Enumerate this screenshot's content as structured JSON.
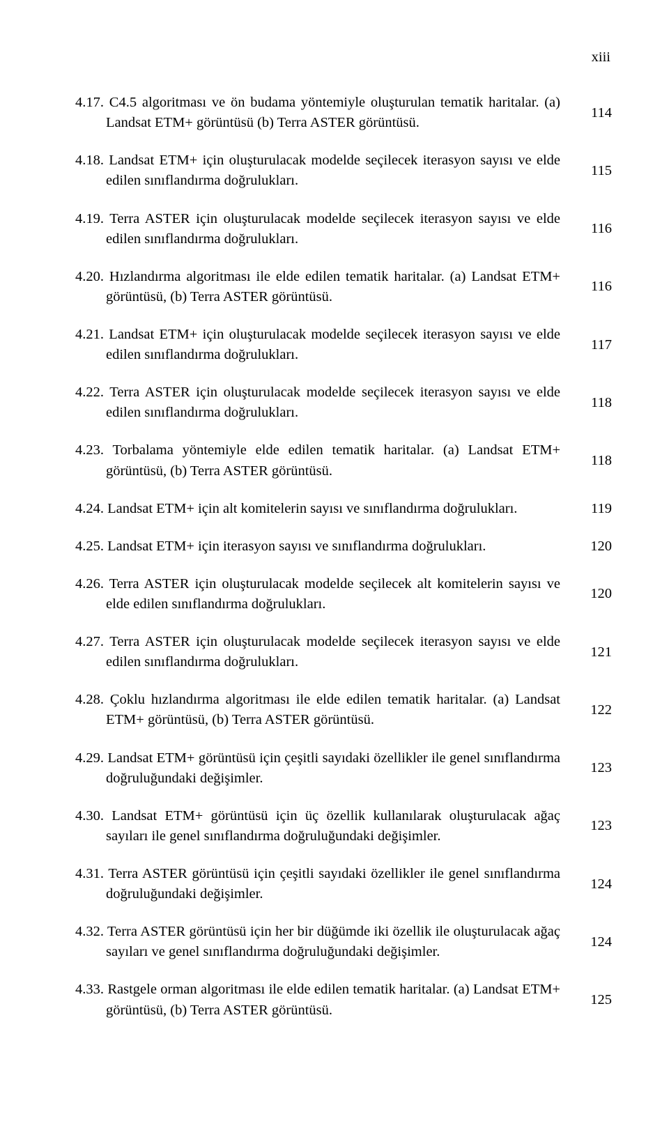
{
  "page_label": "xiii",
  "entries": [
    {
      "text": "4.17. C4.5 algoritması ve ön budama yöntemiyle oluşturulan tematik haritalar. (a) Landsat ETM+ görüntüsü (b) Terra ASTER görüntüsü.",
      "page": "114"
    },
    {
      "text": "4.18. Landsat ETM+ için oluşturulacak modelde seçilecek iterasyon sayısı ve elde edilen sınıflandırma doğrulukları.",
      "page": "115"
    },
    {
      "text": "4.19. Terra ASTER için oluşturulacak modelde seçilecek iterasyon sayısı ve elde edilen sınıflandırma doğrulukları.",
      "page": "116"
    },
    {
      "text": "4.20. Hızlandırma algoritması ile elde edilen tematik haritalar. (a) Landsat ETM+ görüntüsü, (b) Terra ASTER görüntüsü.",
      "page": "116"
    },
    {
      "text": "4.21. Landsat ETM+ için oluşturulacak modelde seçilecek iterasyon sayısı ve elde edilen sınıflandırma doğrulukları.",
      "page": "117"
    },
    {
      "text": "4.22. Terra ASTER için oluşturulacak modelde seçilecek iterasyon sayısı ve elde edilen sınıflandırma doğrulukları.",
      "page": "118"
    },
    {
      "text": "4.23. Torbalama yöntemiyle elde edilen tematik haritalar. (a) Landsat ETM+ görüntüsü, (b) Terra ASTER görüntüsü.",
      "page": "118"
    },
    {
      "text": "4.24. Landsat ETM+ için alt komitelerin sayısı ve sınıflandırma doğrulukları.",
      "page": "119"
    },
    {
      "text": "4.25. Landsat ETM+ için iterasyon sayısı ve sınıflandırma doğrulukları.",
      "page": "120"
    },
    {
      "text": "4.26. Terra ASTER için oluşturulacak modelde seçilecek alt komitelerin sayısı ve elde edilen sınıflandırma doğrulukları.",
      "page": "120"
    },
    {
      "text": "4.27. Terra ASTER için oluşturulacak modelde seçilecek iterasyon sayısı ve elde edilen sınıflandırma doğrulukları.",
      "page": "121"
    },
    {
      "text": "4.28. Çoklu hızlandırma algoritması ile elde edilen tematik haritalar. (a) Landsat ETM+ görüntüsü, (b) Terra ASTER görüntüsü.",
      "page": "122"
    },
    {
      "text": "4.29. Landsat ETM+ görüntüsü için çeşitli sayıdaki özellikler ile genel sınıflandırma doğruluğundaki değişimler.",
      "page": "123"
    },
    {
      "text": "4.30. Landsat ETM+ görüntüsü için üç özellik kullanılarak oluşturulacak ağaç sayıları ile genel sınıflandırma doğruluğundaki değişimler.",
      "page": "123"
    },
    {
      "text": "4.31. Terra ASTER görüntüsü için çeşitli sayıdaki özellikler ile genel sınıflandırma doğruluğundaki değişimler.",
      "page": "124"
    },
    {
      "text": "4.32. Terra ASTER görüntüsü için her bir düğümde iki özellik ile oluşturulacak ağaç sayıları ve genel sınıflandırma doğruluğundaki değişimler.",
      "page": "124"
    },
    {
      "text": "4.33. Rastgele orman algoritması ile elde edilen tematik haritalar. (a) Landsat ETM+ görüntüsü, (b) Terra ASTER görüntüsü.",
      "page": "125"
    }
  ]
}
